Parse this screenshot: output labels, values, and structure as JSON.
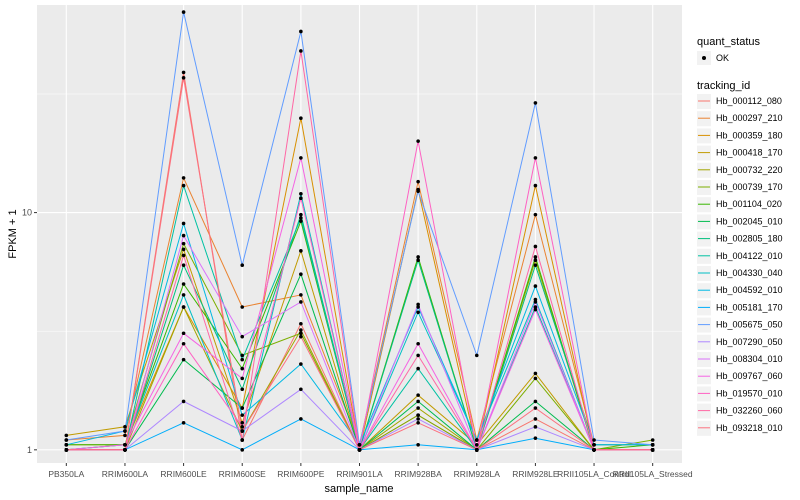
{
  "chart_data": {
    "type": "line",
    "xlabel": "sample_name",
    "ylabel": "FPKM + 1",
    "y_scale": "log10",
    "ylim": [
      0.88,
      75
    ],
    "y_ticks": [
      1,
      10
    ],
    "categories": [
      "PB350LA",
      "RRIM600LA",
      "RRIM600LE",
      "RRIM600SE",
      "RRIM600PE",
      "RRIM901LA",
      "RRIM928BA",
      "RRIM928LA",
      "RRIM928LE",
      "RRII105LA_Control",
      "RRII105LA_Stressed"
    ],
    "legend_shape": {
      "title": "quant_status",
      "entries": [
        "OK"
      ]
    },
    "legend_color_title": "tracking_id",
    "series": [
      {
        "name": "Hb_000112_080",
        "color": "#F8766D",
        "values": [
          1.0,
          1.0,
          39.0,
          1.1,
          3.4,
          1.0,
          1.4,
          1.0,
          1.35,
          1.0,
          1.0
        ]
      },
      {
        "name": "Hb_000297_210",
        "color": "#EA8331",
        "values": [
          1.1,
          1.15,
          14.0,
          4.0,
          4.5,
          1.05,
          13.5,
          1.1,
          9.8,
          1.05,
          1.05
        ]
      },
      {
        "name": "Hb_000359_180",
        "color": "#D89000",
        "values": [
          1.05,
          1.05,
          4.0,
          1.5,
          25.0,
          1.0,
          12.5,
          1.0,
          13.0,
          1.0,
          1.0
        ]
      },
      {
        "name": "Hb_000418_170",
        "color": "#C09B00",
        "values": [
          1.15,
          1.25,
          7.0,
          1.3,
          6.9,
          1.0,
          1.7,
          1.05,
          2.1,
          1.0,
          1.0
        ]
      },
      {
        "name": "Hb_000732_220",
        "color": "#A3A500",
        "values": [
          1.0,
          1.0,
          4.0,
          1.2,
          3.2,
          1.0,
          1.5,
          1.0,
          6.3,
          1.0,
          1.0
        ]
      },
      {
        "name": "Hb_000739_170",
        "color": "#7CAE00",
        "values": [
          1.0,
          1.05,
          7.4,
          2.5,
          3.1,
          1.0,
          1.4,
          1.0,
          2.0,
          1.0,
          1.1
        ]
      },
      {
        "name": "Hb_001104_020",
        "color": "#39B600",
        "values": [
          1.05,
          1.05,
          5.0,
          2.2,
          9.2,
          1.0,
          6.5,
          1.0,
          6.5,
          1.0,
          1.05
        ]
      },
      {
        "name": "Hb_002045_010",
        "color": "#00BB4E",
        "values": [
          1.0,
          1.0,
          2.4,
          1.5,
          5.5,
          1.0,
          1.6,
          1.0,
          1.6,
          1.0,
          1.0
        ]
      },
      {
        "name": "Hb_002805_180",
        "color": "#00BF7D",
        "values": [
          1.0,
          1.0,
          6.0,
          1.8,
          9.8,
          1.0,
          6.3,
          1.0,
          6.0,
          1.05,
          1.05
        ]
      },
      {
        "name": "Hb_004122_010",
        "color": "#00C1A3",
        "values": [
          1.0,
          1.0,
          13.0,
          2.4,
          9.5,
          1.0,
          2.2,
          1.0,
          4.0,
          1.0,
          1.0
        ]
      },
      {
        "name": "Hb_004330_040",
        "color": "#00BFC4",
        "values": [
          1.0,
          1.05,
          4.5,
          1.1,
          12.0,
          1.0,
          3.8,
          1.1,
          4.3,
          1.0,
          1.0
        ]
      },
      {
        "name": "Hb_004592_010",
        "color": "#00B9E3",
        "values": [
          1.05,
          1.2,
          9.0,
          1.4,
          2.3,
          1.05,
          4.0,
          1.1,
          4.9,
          1.05,
          1.05
        ]
      },
      {
        "name": "Hb_005181_170",
        "color": "#00ADFA",
        "values": [
          1.0,
          1.0,
          1.3,
          1.0,
          1.35,
          1.0,
          1.05,
          1.0,
          1.12,
          1.0,
          1.0
        ]
      },
      {
        "name": "Hb_005675_050",
        "color": "#619CFF",
        "values": [
          1.1,
          1.2,
          70.0,
          6.0,
          58.0,
          1.05,
          12.3,
          2.5,
          29.0,
          1.1,
          1.05
        ]
      },
      {
        "name": "Hb_007290_050",
        "color": "#AE87FF",
        "values": [
          1.0,
          1.0,
          1.6,
          1.2,
          1.8,
          1.0,
          1.35,
          1.0,
          1.25,
          1.0,
          1.0
        ]
      },
      {
        "name": "Hb_008304_010",
        "color": "#DB72FB",
        "values": [
          1.0,
          1.0,
          8.0,
          3.0,
          4.2,
          1.0,
          4.1,
          1.0,
          4.2,
          1.0,
          1.0
        ]
      },
      {
        "name": "Hb_009767_060",
        "color": "#F564E3",
        "values": [
          1.0,
          1.05,
          3.1,
          2.0,
          17.0,
          1.0,
          2.8,
          1.0,
          3.9,
          1.0,
          1.0
        ]
      },
      {
        "name": "Hb_019570_010",
        "color": "#FF61C3",
        "values": [
          1.0,
          1.0,
          2.8,
          1.25,
          11.5,
          1.0,
          20.0,
          1.0,
          17.0,
          1.0,
          1.0
        ]
      },
      {
        "name": "Hb_032260_060",
        "color": "#FF67A4",
        "values": [
          1.0,
          1.0,
          6.6,
          1.1,
          48.0,
          1.0,
          2.5,
          1.0,
          7.2,
          1.0,
          1.0
        ]
      },
      {
        "name": "Hb_093218_010",
        "color": "#FC717F",
        "values": [
          1.0,
          1.0,
          37.0,
          1.2,
          3.0,
          1.0,
          1.3,
          1.0,
          1.5,
          1.0,
          1.0
        ]
      }
    ]
  }
}
